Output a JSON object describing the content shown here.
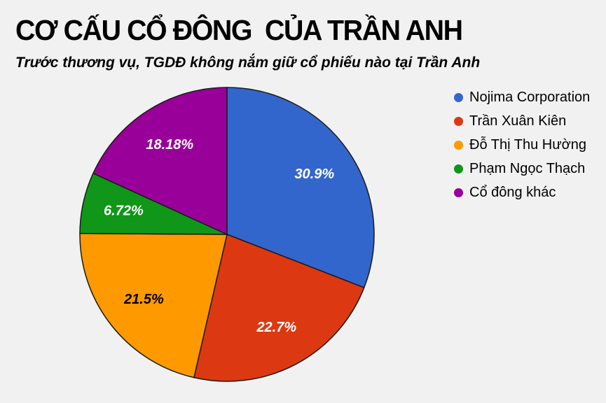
{
  "header": {
    "title": "CƠ CẤU CỔ ĐÔNG  CỦA TRẦN ANH",
    "subtitle": "Trước thương vụ, TGDĐ không nắm giữ cổ phiếu nào tại Trần Anh"
  },
  "chart_data": {
    "type": "pie",
    "title": "CƠ CẤU CỔ ĐÔNG  CỦA TRẦN ANH",
    "subtitle": "Trước thương vụ, TGDĐ không nắm giữ cổ phiếu nào tại Trần Anh",
    "categories": [
      "Nojima Corporation",
      "Trần Xuân Kiên",
      "Đỗ Thị Thu Hường",
      "Phạm Ngọc Thạch",
      "Cổ đông khác"
    ],
    "values": [
      30.9,
      22.7,
      21.5,
      6.72,
      18.18
    ],
    "slice_labels": [
      "30.9%",
      "22.7%",
      "21.5%",
      "6.72%",
      "18.18%"
    ],
    "colors": [
      "#3366CC",
      "#DC3912",
      "#FF9900",
      "#109618",
      "#990099"
    ],
    "slice_label_colors": [
      "#FFFFFF",
      "#FFFFFF",
      "#000000",
      "#FFFFFF",
      "#FFFFFF"
    ],
    "stroke_color": "#1A1A1A",
    "background_color": "#F1F1F1",
    "start_angle_deg": 0,
    "direction": "clockwise",
    "legend_position": "right",
    "grid": false
  }
}
